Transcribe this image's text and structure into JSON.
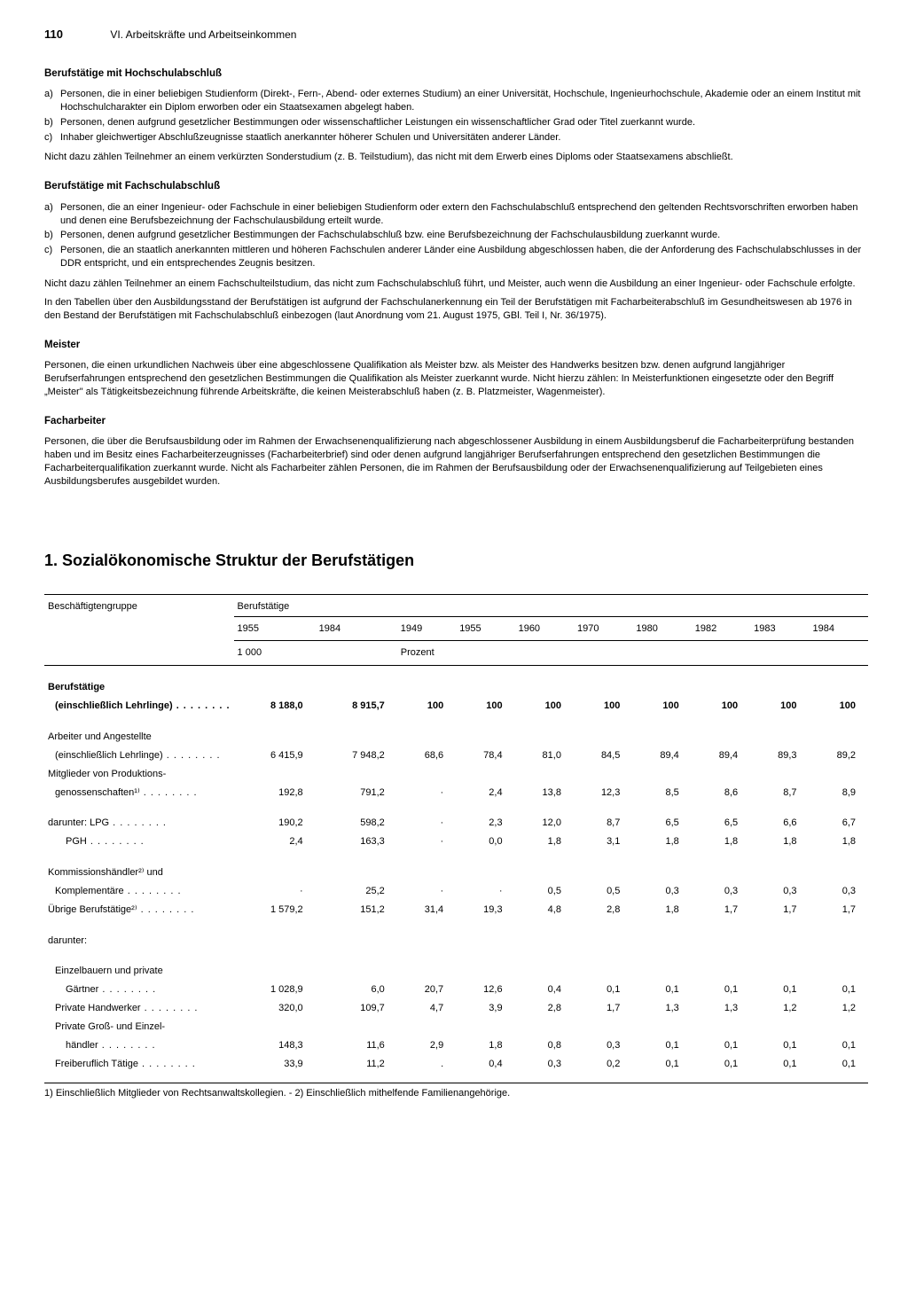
{
  "header": {
    "page_number": "110",
    "chapter": "VI. Arbeitskräfte und Arbeitseinkommen"
  },
  "section1": {
    "title": "Berufstätige mit Hochschulabschluß",
    "items": [
      {
        "m": "a)",
        "t": "Personen, die in einer beliebigen Studienform (Direkt-, Fern-, Abend- oder externes Studium) an einer Universität, Hochschule, Ingenieurhochschule, Akademie oder an einem Institut mit Hochschulcharakter ein Diplom erworben oder ein Staatsexamen abgelegt haben."
      },
      {
        "m": "b)",
        "t": "Personen, denen aufgrund gesetzlicher Bestimmungen oder wissenschaftlicher Leistungen ein wissenschaftlicher Grad oder Titel zuerkannt wurde."
      },
      {
        "m": "c)",
        "t": "Inhaber gleichwertiger Abschlußzeugnisse staatlich anerkannter höherer Schulen und Universitäten anderer Länder."
      }
    ],
    "after": "Nicht dazu zählen Teilnehmer an einem verkürzten Sonderstudium (z. B. Teilstudium), das nicht mit dem Erwerb eines Diploms oder Staatsexamens abschließt."
  },
  "section2": {
    "title": "Berufstätige mit Fachschulabschluß",
    "items": [
      {
        "m": "a)",
        "t": "Personen, die an einer Ingenieur- oder Fachschule in einer beliebigen Studienform oder extern den Fachschulabschluß entsprechend den geltenden Rechtsvorschriften erworben haben und denen eine Berufsbezeichnung der Fachschulausbildung erteilt wurde."
      },
      {
        "m": "b)",
        "t": "Personen, denen aufgrund gesetzlicher Bestimmungen der Fachschulabschluß bzw. eine Berufsbezeichnung der Fachschulausbildung zuerkannt wurde."
      },
      {
        "m": "c)",
        "t": "Personen, die an staatlich anerkannten mittleren und höheren Fachschulen anderer Länder eine Ausbildung abgeschlossen haben, die der Anforderung des Fachschulabschlusses in der DDR entspricht, und ein entsprechendes Zeugnis besitzen."
      }
    ],
    "after1": "Nicht dazu zählen Teilnehmer an einem Fachschulteilstudium, das nicht zum Fachschulabschluß führt, und Meister, auch wenn die Ausbildung an einer Ingenieur- oder Fachschule erfolgte.",
    "after2": "In den Tabellen über den Ausbildungsstand der Berufstätigen ist aufgrund der Fachschulanerkennung ein Teil der Berufstätigen mit Facharbeiterabschluß im Gesundheitswesen ab 1976 in den Bestand der Berufstätigen mit Fachschulabschluß einbezogen (laut Anordnung vom 21. August 1975, GBl. Teil I, Nr. 36/1975)."
  },
  "section3": {
    "title": "Meister",
    "body": "Personen, die einen urkundlichen Nachweis über eine abgeschlossene Qualifikation als Meister bzw. als Meister des Handwerks besitzen bzw. denen aufgrund langjähriger Berufserfahrungen entsprechend den gesetzlichen Bestimmungen die Qualifikation als Meister zuerkannt wurde. Nicht hierzu zählen: In Meisterfunktionen eingesetzte oder den Begriff „Meister\" als Tätigkeitsbezeichnung führende Arbeitskräfte, die keinen Meisterabschluß haben (z. B. Platzmeister, Wagenmeister)."
  },
  "section4": {
    "title": "Facharbeiter",
    "body": "Personen, die über die Berufsausbildung oder im Rahmen der Erwachsenenqualifizierung nach abgeschlossener Ausbildung in einem Ausbildungsberuf die Facharbeiterprüfung bestanden haben und im Besitz eines Facharbeiterzeugnisses (Facharbeiterbrief) sind oder denen aufgrund langjähriger Berufserfahrungen entsprechend den gesetzlichen Bestimmungen die Facharbeiterqualifikation zuerkannt wurde. Nicht als Facharbeiter zählen Personen, die im Rahmen der Berufsausbildung oder der Erwachsenenqualifizierung auf Teilgebieten eines Ausbildungsberufes ausgebildet wurden."
  },
  "main_heading": "1. Sozialökonomische Struktur der Berufstätigen",
  "table": {
    "head_group_label": "Beschäftigtengruppe",
    "head_span_label": "Berufstätige",
    "years": [
      "1955",
      "1984",
      "1949",
      "1955",
      "1960",
      "1970",
      "1980",
      "1982",
      "1983",
      "1984"
    ],
    "unit1": "1 000",
    "unit2": "Prozent",
    "rows": [
      {
        "label": "Berufstätige",
        "bold": true,
        "indent": 0,
        "continued": true
      },
      {
        "label": "(einschließlich Lehrlinge)",
        "bold": true,
        "indent": 1,
        "dots": true,
        "v": [
          "8 188,0",
          "8 915,7",
          "100",
          "100",
          "100",
          "100",
          "100",
          "100",
          "100",
          "100"
        ]
      },
      {
        "spacer": true
      },
      {
        "label": "Arbeiter und Angestellte",
        "indent": 0,
        "continued": true
      },
      {
        "label": "(einschließlich Lehrlinge)",
        "indent": 1,
        "dots": true,
        "v": [
          "6 415,9",
          "7 948,2",
          "68,6",
          "78,4",
          "81,0",
          "84,5",
          "89,4",
          "89,4",
          "89,3",
          "89,2"
        ]
      },
      {
        "label": "Mitglieder von Produktions-",
        "indent": 0,
        "continued": true
      },
      {
        "label": "genossenschaften¹⁾",
        "indent": 1,
        "dots": true,
        "v": [
          "192,8",
          "791,2",
          "·",
          "2,4",
          "13,8",
          "12,3",
          "8,5",
          "8,6",
          "8,7",
          "8,9"
        ]
      },
      {
        "spacer": true
      },
      {
        "label": "darunter: LPG",
        "indent": 0,
        "dots": true,
        "v": [
          "190,2",
          "598,2",
          "·",
          "2,3",
          "12,0",
          "8,7",
          "6,5",
          "6,5",
          "6,6",
          "6,7"
        ]
      },
      {
        "label": "PGH",
        "indent": 2,
        "dots": true,
        "v": [
          "2,4",
          "163,3",
          "·",
          "0,0",
          "1,8",
          "3,1",
          "1,8",
          "1,8",
          "1,8",
          "1,8"
        ]
      },
      {
        "spacer": true
      },
      {
        "label": "Kommissionshändler²⁾ und",
        "indent": 0,
        "continued": true
      },
      {
        "label": "Komplementäre",
        "indent": 1,
        "dots": true,
        "v": [
          "·",
          "25,2",
          "·",
          "·",
          "0,5",
          "0,5",
          "0,3",
          "0,3",
          "0,3",
          "0,3"
        ]
      },
      {
        "label": "Übrige Berufstätige²⁾",
        "indent": 0,
        "dots": true,
        "v": [
          "1 579,2",
          "151,2",
          "31,4",
          "19,3",
          "4,8",
          "2,8",
          "1,8",
          "1,7",
          "1,7",
          "1,7"
        ]
      },
      {
        "spacer": true
      },
      {
        "label": "darunter:",
        "indent": 0
      },
      {
        "spacer": true
      },
      {
        "label": "Einzelbauern und private",
        "indent": 1,
        "continued": true
      },
      {
        "label": "Gärtner",
        "indent": 2,
        "dots": true,
        "v": [
          "1 028,9",
          "6,0",
          "20,7",
          "12,6",
          "0,4",
          "0,1",
          "0,1",
          "0,1",
          "0,1",
          "0,1"
        ]
      },
      {
        "label": "Private Handwerker",
        "indent": 1,
        "dots": true,
        "v": [
          "320,0",
          "109,7",
          "4,7",
          "3,9",
          "2,8",
          "1,7",
          "1,3",
          "1,3",
          "1,2",
          "1,2"
        ]
      },
      {
        "label": "Private Groß- und Einzel-",
        "indent": 1,
        "continued": true
      },
      {
        "label": "händler",
        "indent": 2,
        "dots": true,
        "v": [
          "148,3",
          "11,6",
          "2,9",
          "1,8",
          "0,8",
          "0,3",
          "0,1",
          "0,1",
          "0,1",
          "0,1"
        ]
      },
      {
        "label": "Freiberuflich Tätige",
        "indent": 1,
        "dots": true,
        "v": [
          "33,9",
          "11,2",
          ".",
          "0,4",
          "0,3",
          "0,2",
          "0,1",
          "0,1",
          "0,1",
          "0,1"
        ]
      }
    ],
    "footnote": "1) Einschließlich Mitglieder von Rechtsanwaltskollegien. - 2) Einschließlich mithelfende Familienangehörige."
  }
}
